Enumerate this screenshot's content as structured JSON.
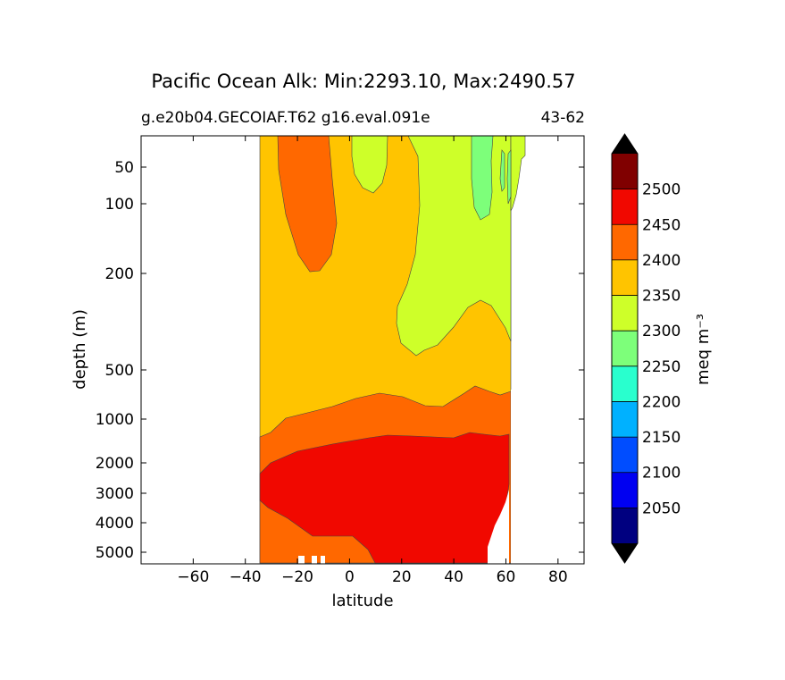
{
  "chart_data": {
    "type": "contour",
    "title": "Pacific Ocean Alk: Min:2293.10, Max:2490.57",
    "subtitle_left": "g.e20b04.GECOIAF.T62 g16.eval.091e",
    "subtitle_right": "43-62",
    "xlabel": "latitude",
    "ylabel": "depth (m)",
    "xlim": [
      -80,
      90
    ],
    "x_ticks": [
      -60,
      -40,
      -20,
      0,
      20,
      40,
      60,
      80
    ],
    "x_tick_labels": [
      "−60",
      "−40",
      "−20",
      "0",
      "20",
      "40",
      "60",
      "80"
    ],
    "y_ticks": [
      50,
      100,
      200,
      500,
      1000,
      2000,
      3000,
      4000,
      5000
    ],
    "y_tick_labels": [
      "50",
      "100",
      "200",
      "500",
      "1000",
      "2000",
      "3000",
      "4000",
      "5000"
    ],
    "colorbar": {
      "label": "meq m⁻³",
      "levels": [
        2000,
        2050,
        2100,
        2150,
        2200,
        2250,
        2300,
        2350,
        2400,
        2450,
        2500,
        2550
      ],
      "tick_labels": [
        "2050",
        "2100",
        "2150",
        "2200",
        "2250",
        "2300",
        "2350",
        "2400",
        "2450",
        "2500"
      ],
      "colors": [
        "#000080",
        "#0000f1",
        "#004dff",
        "#00b1ff",
        "#29ffce",
        "#7dff7a",
        "#ceff29",
        "#ffc400",
        "#ff6800",
        "#f10800",
        "#800000"
      ],
      "under_color": "#000000",
      "over_color": "#000000",
      "extend": "both"
    }
  }
}
